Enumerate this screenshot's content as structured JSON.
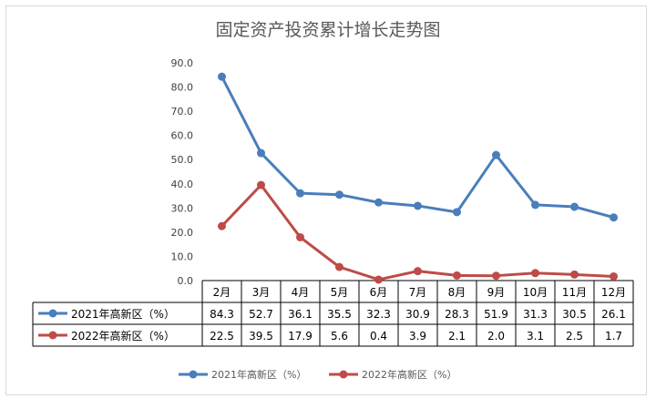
{
  "chart_data": {
    "type": "line",
    "title": "固定资产投资累计增长走势图",
    "categories": [
      "2月",
      "3月",
      "4月",
      "5月",
      "6月",
      "7月",
      "8月",
      "9月",
      "10月",
      "11月",
      "12月"
    ],
    "ylim": [
      0,
      90
    ],
    "y_ticks": [
      "0.0",
      "10.0",
      "20.0",
      "30.0",
      "40.0",
      "50.0",
      "60.0",
      "70.0",
      "80.0",
      "90.0"
    ],
    "grid": false,
    "legend_position": "bottom",
    "series": [
      {
        "name": "2021年高新区（%）",
        "color": "#4a7ebb",
        "values": [
          84.3,
          52.7,
          36.1,
          35.5,
          32.3,
          30.9,
          28.3,
          51.9,
          31.3,
          30.5,
          26.1
        ],
        "labels": [
          "84.3",
          "52.7",
          "36.1",
          "35.5",
          "32.3",
          "30.9",
          "28.3",
          "51.9",
          "31.3",
          "30.5",
          "26.1"
        ]
      },
      {
        "name": "2022年高新区（%）",
        "color": "#be4b48",
        "values": [
          22.5,
          39.5,
          17.9,
          5.6,
          0.4,
          3.9,
          2.1,
          2.0,
          3.1,
          2.5,
          1.7
        ],
        "labels": [
          "22.5",
          "39.5",
          "17.9",
          "5.6",
          "0.4",
          "3.9",
          "2.1",
          "2.0",
          "3.1",
          "2.5",
          "1.7"
        ]
      }
    ]
  }
}
